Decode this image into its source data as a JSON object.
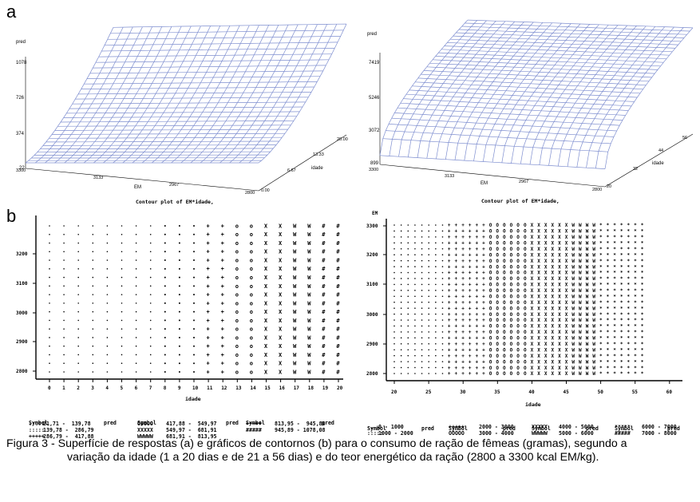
{
  "labels": {
    "a": "a",
    "b": "b"
  },
  "surface1": {
    "z_label": "pred",
    "z_ticks": [
      "1078",
      "726",
      "374",
      "22"
    ],
    "em_ticks": [
      "3300",
      "3133",
      "2967",
      "2800"
    ],
    "em_label": "EM",
    "idade_ticks": [
      "0.00",
      "6.67",
      "13.33",
      "20.00"
    ],
    "idade_label": "idade",
    "contour_title": "Contour plot of EM*idade,"
  },
  "surface2": {
    "z_label": "pred",
    "z_ticks": [
      "7419",
      "5246",
      "3072",
      "899"
    ],
    "em_ticks": [
      "3300",
      "3133",
      "2967",
      "2800"
    ],
    "em_label": "EM",
    "idade_ticks": [
      "20",
      "32",
      "44",
      "56"
    ],
    "idade_label": "idade",
    "contour_title": "Contour plot of EM*idade,"
  },
  "chart_data": [
    {
      "type": "surface",
      "xlabel": "EM",
      "ylabel": "idade",
      "zlabel": "pred",
      "x_range": [
        2800,
        3300
      ],
      "y_range": [
        0,
        20
      ],
      "z_range": [
        22,
        1078
      ]
    },
    {
      "type": "surface",
      "xlabel": "EM",
      "ylabel": "idade",
      "zlabel": "pred",
      "x_range": [
        2800,
        3300
      ],
      "y_range": [
        20,
        56
      ],
      "z_range": [
        899,
        7419
      ]
    },
    {
      "type": "contour",
      "xlabel": "idade",
      "ylabel": "EM",
      "x_ticks": [
        "0",
        "1",
        "2",
        "3",
        "4",
        "5",
        "6",
        "7",
        "8",
        "9",
        "10",
        "11",
        "12",
        "13",
        "14",
        "15",
        "16",
        "17",
        "18",
        "19",
        "20"
      ],
      "y_ticks": [
        "2800",
        "2900",
        "3000",
        "3100",
        "3200"
      ],
      "columns_symbol": [
        ".",
        ".",
        ".",
        ".",
        ".",
        ".",
        ".",
        ".",
        ":",
        ":",
        ":",
        "+",
        "+",
        "o",
        "o",
        "X",
        "X",
        "W",
        "W",
        "#",
        "#"
      ]
    },
    {
      "type": "contour",
      "xlabel": "idade",
      "ylabel": "EM",
      "x_ticks": [
        "20",
        "25",
        "30",
        "35",
        "40",
        "45",
        "50",
        "55",
        "60"
      ],
      "y_ticks": [
        "2800",
        "2900",
        "3000",
        "3100",
        "3200",
        "3300"
      ]
    }
  ],
  "contour1": {
    "x_label": "idade",
    "legend_headers": [
      "Symbol",
      "pred",
      "Symbol",
      "pred",
      "Symbol",
      "pred"
    ],
    "legend_rows": [
      [
        ":::::",
        "21,71 -  139,78",
        "OOOOO",
        "417,88 -  549,97",
        "+++++",
        "813,95 -  945,88"
      ],
      [
        ":::::",
        "139,78 -  286,79",
        "XXXXX",
        "549,97 -  681,91",
        "#####",
        "945,89 - 1078,08"
      ],
      [
        "+++++",
        "286,79 -  417,88",
        "WWWWW",
        "681,91 -  813,95",
        "",
        ""
      ]
    ]
  },
  "contour2": {
    "x_label": "idade",
    "y_label": "EM",
    "legend_headers": [
      "Symbol",
      "pred",
      "Symbol",
      "pred",
      "Symbol",
      "pred",
      "Symbol",
      "pred"
    ],
    "legend_rows": [
      [
        "....",
        "0 - 1000",
        "+++++",
        "2000 - 3000",
        "XXXXX",
        "4000 - 5000",
        "*****",
        "6000 - 7000"
      ],
      [
        ":::::",
        "1000 - 2000",
        "OOOOO",
        "3000 - 4000",
        "WWWWW",
        "5000 - 6000",
        "#####",
        "7000 - 8000"
      ]
    ]
  },
  "caption": {
    "line1": "Figura 3 - Superfície de respostas (a) e gráficos de contornos (b) para o consumo de ração de fêmeas (gramas), segundo a",
    "line2": "variação da idade (1 a 20 dias e de 21 a 56 dias) e do teor energético da ração (2800 a 3300 kcal EM/kg)."
  }
}
